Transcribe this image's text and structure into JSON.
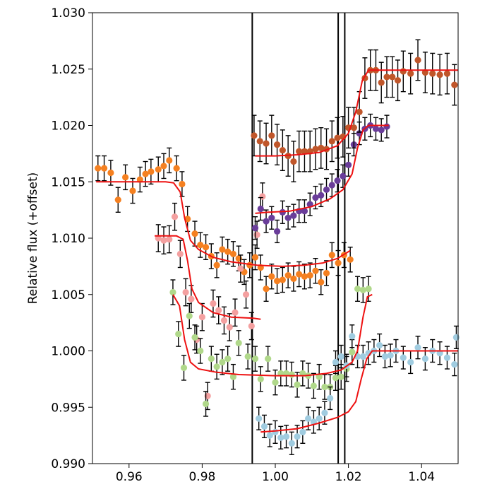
{
  "chart_data": {
    "type": "scatter",
    "title": "",
    "xlabel": "",
    "ylabel": "Relative flux (+offset)",
    "xlim": [
      0.95,
      1.05
    ],
    "ylim": [
      0.99,
      1.03
    ],
    "xticks": [
      0.96,
      0.98,
      1.0,
      1.02,
      1.04
    ],
    "xtick_labels": [
      "0.96",
      "0.98",
      "1.00",
      "1.02",
      "1.04"
    ],
    "yticks": [
      0.99,
      0.995,
      1.0,
      1.005,
      1.01,
      1.015,
      1.02,
      1.025,
      1.03
    ],
    "ytick_labels": [
      "0.990",
      "0.995",
      "1.000",
      "1.005",
      "1.010",
      "1.015",
      "1.020",
      "1.025",
      "1.030"
    ],
    "grid": false,
    "vertical_lines": [
      0.9937,
      1.0172,
      1.019
    ],
    "model_color": "#ee1111",
    "series": [
      {
        "color": "#f58020",
        "err": 0.0011,
        "points": [
          [
            0.9515,
            1.0162
          ],
          [
            0.9532,
            1.0162
          ],
          [
            0.955,
            1.0158
          ],
          [
            0.957,
            1.0134
          ],
          [
            0.959,
            1.0154
          ],
          [
            0.961,
            1.0142
          ],
          [
            0.963,
            1.0152
          ],
          [
            0.9645,
            1.0157
          ],
          [
            0.966,
            1.0159
          ],
          [
            0.968,
            1.0161
          ],
          [
            0.9695,
            1.0164
          ],
          [
            0.971,
            1.0169
          ],
          [
            0.973,
            1.0162
          ],
          [
            0.9745,
            1.0148
          ],
          [
            0.976,
            1.0117
          ],
          [
            0.978,
            1.0104
          ],
          [
            0.9795,
            1.0094
          ],
          [
            0.981,
            1.0092
          ],
          [
            0.9825,
            1.0084
          ],
          [
            0.984,
            1.0076
          ],
          [
            0.9855,
            1.009
          ],
          [
            0.987,
            1.0088
          ],
          [
            0.9885,
            1.0086
          ],
          [
            0.99,
            1.0082
          ],
          [
            0.9915,
            1.007
          ],
          [
            0.993,
            1.0076
          ],
          [
            0.9945,
            1.0083
          ],
          [
            0.996,
            1.0074
          ],
          [
            0.9975,
            1.0055
          ],
          [
            0.999,
            1.0066
          ],
          [
            1.0005,
            1.0062
          ],
          [
            1.002,
            1.0063
          ],
          [
            1.0035,
            1.0067
          ],
          [
            1.005,
            1.0064
          ],
          [
            1.0065,
            1.0068
          ],
          [
            1.008,
            1.0066
          ],
          [
            1.0095,
            1.0067
          ],
          [
            1.011,
            1.0071
          ],
          [
            1.0125,
            1.0061
          ],
          [
            1.014,
            1.0069
          ],
          [
            1.0155,
            1.0085
          ],
          [
            1.0172,
            1.0078
          ],
          [
            1.0188,
            1.0085
          ],
          [
            1.0205,
            1.0081
          ]
        ]
      },
      {
        "color": "#f4a0a0",
        "err": 0.0012,
        "points": [
          [
            0.968,
            1.01
          ],
          [
            0.9695,
            1.0098
          ],
          [
            0.971,
            1.0099
          ],
          [
            0.9725,
            1.0119
          ],
          [
            0.974,
            1.0086
          ],
          [
            0.9755,
            1.0052
          ],
          [
            0.977,
            1.0046
          ],
          [
            0.9785,
            1.001
          ],
          [
            0.98,
            1.003
          ],
          [
            0.9815,
            0.996
          ],
          [
            0.983,
            1.0042
          ],
          [
            0.9845,
            1.0036
          ],
          [
            0.986,
            1.0027
          ],
          [
            0.9875,
            1.0021
          ],
          [
            0.989,
            1.0034
          ],
          [
            0.9905,
            1.0073
          ],
          [
            0.992,
            1.005
          ],
          [
            0.9935,
            1.0022
          ],
          [
            0.995,
            1.0103
          ],
          [
            0.9965,
            1.0137
          ]
        ]
      },
      {
        "color": "#b0d88a",
        "err": 0.0011,
        "points": [
          [
            0.972,
            1.0052
          ],
          [
            0.9735,
            1.0015
          ],
          [
            0.975,
            0.9985
          ],
          [
            0.9765,
            1.0031
          ],
          [
            0.978,
            1.0012
          ],
          [
            0.9795,
            1.0
          ],
          [
            0.981,
            0.9953
          ],
          [
            0.9825,
            0.9993
          ],
          [
            0.984,
            0.9986
          ],
          [
            0.9855,
            0.999
          ],
          [
            0.987,
            0.9993
          ],
          [
            0.9885,
            0.9977
          ],
          [
            0.99,
            1.0007
          ],
          [
            0.9925,
            0.9995
          ],
          [
            0.9945,
            0.9993
          ],
          [
            0.996,
            0.9975
          ],
          [
            0.998,
            0.9993
          ],
          [
            1.0,
            0.9972
          ],
          [
            1.0015,
            0.998
          ],
          [
            1.003,
            0.998
          ],
          [
            1.0045,
            0.9979
          ],
          [
            1.006,
            0.997
          ],
          [
            1.0075,
            0.998
          ],
          [
            1.009,
            0.9978
          ],
          [
            1.0105,
            0.9969
          ],
          [
            1.012,
            0.9977
          ],
          [
            1.0135,
            0.9968
          ],
          [
            1.015,
            0.9968
          ],
          [
            1.0165,
            0.9976
          ],
          [
            1.018,
            0.9977
          ],
          [
            1.0195,
            0.9984
          ],
          [
            1.021,
            0.9999
          ],
          [
            1.0225,
            1.0055
          ],
          [
            1.024,
            1.0054
          ],
          [
            1.0255,
            1.0055
          ]
        ]
      },
      {
        "color": "#a0cce0",
        "err": 0.001,
        "points": [
          [
            0.9955,
            0.994
          ],
          [
            0.997,
            0.9933
          ],
          [
            0.9985,
            0.9925
          ],
          [
            1.0,
            0.9928
          ],
          [
            1.0015,
            0.9923
          ],
          [
            1.003,
            0.9924
          ],
          [
            1.0045,
            0.9918
          ],
          [
            1.006,
            0.9924
          ],
          [
            1.0075,
            0.9928
          ],
          [
            1.009,
            0.994
          ],
          [
            1.0105,
            0.9937
          ],
          [
            1.012,
            0.994
          ],
          [
            1.0135,
            0.9945
          ],
          [
            1.015,
            0.9958
          ],
          [
            1.0165,
            0.999
          ],
          [
            1.018,
            0.9995
          ],
          [
            1.0195,
            0.9987
          ],
          [
            1.021,
            1.0013
          ],
          [
            1.0225,
            0.9995
          ],
          [
            1.024,
            0.9995
          ],
          [
            1.0255,
            0.9998
          ],
          [
            1.027,
            1.0
          ],
          [
            1.0285,
            1.0005
          ],
          [
            1.03,
            0.9995
          ],
          [
            1.0315,
            0.9996
          ],
          [
            1.033,
            1.0
          ],
          [
            1.035,
            0.9994
          ],
          [
            1.037,
            0.999
          ],
          [
            1.039,
            1.0003
          ],
          [
            1.041,
            0.9993
          ],
          [
            1.043,
            1.0
          ],
          [
            1.045,
            0.9998
          ],
          [
            1.047,
            0.9994
          ],
          [
            1.049,
            0.9988
          ],
          [
            1.0495,
            1.0012
          ]
        ]
      },
      {
        "color": "#6a3d9a",
        "err": 0.001,
        "points": [
          [
            0.9945,
            1.0109
          ],
          [
            0.996,
            1.0126
          ],
          [
            0.9975,
            1.0115
          ],
          [
            0.999,
            1.0118
          ],
          [
            1.0005,
            1.0106
          ],
          [
            1.002,
            1.0123
          ],
          [
            1.0035,
            1.0118
          ],
          [
            1.005,
            1.012
          ],
          [
            1.0065,
            1.0124
          ],
          [
            1.008,
            1.0124
          ],
          [
            1.0095,
            1.013
          ],
          [
            1.011,
            1.0136
          ],
          [
            1.0125,
            1.0138
          ],
          [
            1.014,
            1.0143
          ],
          [
            1.0155,
            1.0147
          ],
          [
            1.017,
            1.0151
          ],
          [
            1.0185,
            1.0155
          ],
          [
            1.02,
            1.0165
          ],
          [
            1.0215,
            1.0183
          ],
          [
            1.023,
            1.0193
          ],
          [
            1.0245,
            1.0197
          ],
          [
            1.026,
            1.02
          ],
          [
            1.0275,
            1.0197
          ],
          [
            1.029,
            1.0196
          ],
          [
            1.0305,
            1.0199
          ]
        ]
      },
      {
        "color": "#c0562a",
        "err": 0.0018,
        "points": [
          [
            0.9942,
            1.0191
          ],
          [
            0.9958,
            1.0186
          ],
          [
            0.9975,
            1.0184
          ],
          [
            0.999,
            1.0191
          ],
          [
            1.0005,
            1.0183
          ],
          [
            1.002,
            1.0178
          ],
          [
            1.0035,
            1.0173
          ],
          [
            1.005,
            1.0168
          ],
          [
            1.0065,
            1.0177
          ],
          [
            1.008,
            1.0177
          ],
          [
            1.0095,
            1.0177
          ],
          [
            1.011,
            1.0179
          ],
          [
            1.0125,
            1.018
          ],
          [
            1.014,
            1.0179
          ],
          [
            1.0155,
            1.0186
          ],
          [
            1.017,
            1.0189
          ],
          [
            1.0185,
            1.019
          ],
          [
            1.02,
            1.0198
          ],
          [
            1.0215,
            1.0198
          ],
          [
            1.023,
            1.0212
          ],
          [
            1.0245,
            1.0242
          ],
          [
            1.026,
            1.0249
          ],
          [
            1.0275,
            1.0249
          ],
          [
            1.029,
            1.0238
          ],
          [
            1.0305,
            1.0243
          ],
          [
            1.032,
            1.0243
          ],
          [
            1.0335,
            1.024
          ],
          [
            1.035,
            1.0248
          ],
          [
            1.037,
            1.0246
          ],
          [
            1.039,
            1.0258
          ],
          [
            1.041,
            1.0247
          ],
          [
            1.043,
            1.0246
          ],
          [
            1.045,
            1.0245
          ],
          [
            1.047,
            1.0246
          ],
          [
            1.049,
            1.0236
          ]
        ]
      }
    ],
    "models": [
      [
        [
          0.951,
          1.015
        ],
        [
          0.97,
          1.015
        ],
        [
          0.9722,
          1.0149
        ],
        [
          0.974,
          1.0141
        ],
        [
          0.9752,
          1.0118
        ],
        [
          0.9768,
          1.0098
        ],
        [
          0.979,
          1.009
        ],
        [
          0.983,
          1.0083
        ],
        [
          0.988,
          1.0079
        ],
        [
          0.995,
          1.0076
        ],
        [
          1.002,
          1.0075
        ],
        [
          1.008,
          1.0076
        ],
        [
          1.013,
          1.0078
        ],
        [
          1.017,
          1.0082
        ],
        [
          1.0205,
          1.0089
        ]
      ],
      [
        [
          0.967,
          1.0102
        ],
        [
          0.973,
          1.0102
        ],
        [
          0.9748,
          1.0099
        ],
        [
          0.976,
          1.008
        ],
        [
          0.9772,
          1.0055
        ],
        [
          0.979,
          1.0043
        ],
        [
          0.983,
          1.0034
        ],
        [
          0.988,
          1.003
        ],
        [
          0.994,
          1.0029
        ],
        [
          0.996,
          1.0028
        ]
      ],
      [
        [
          0.972,
          1.005
        ],
        [
          0.9738,
          1.004
        ],
        [
          0.9752,
          1.001
        ],
        [
          0.9768,
          0.999
        ],
        [
          0.979,
          0.9984
        ],
        [
          0.984,
          0.9981
        ],
        [
          0.99,
          0.9979
        ],
        [
          1.0,
          0.9978
        ],
        [
          1.008,
          0.9978
        ],
        [
          1.014,
          0.998
        ],
        [
          1.018,
          0.9983
        ],
        [
          1.021,
          0.999
        ],
        [
          1.0225,
          1.0
        ],
        [
          1.024,
          1.003
        ],
        [
          1.0252,
          1.0048
        ],
        [
          1.0265,
          1.005
        ]
      ],
      [
        [
          0.996,
          0.9928
        ],
        [
          1.0,
          0.9929
        ],
        [
          1.006,
          0.9931
        ],
        [
          1.012,
          0.9936
        ],
        [
          1.017,
          0.9941
        ],
        [
          1.02,
          0.9946
        ],
        [
          1.022,
          0.9955
        ],
        [
          1.0235,
          0.9975
        ],
        [
          1.025,
          0.9993
        ],
        [
          1.0265,
          1.0
        ],
        [
          1.05,
          1.0
        ]
      ],
      [
        [
          0.9945,
          1.0122
        ],
        [
          0.998,
          1.0123
        ],
        [
          1.004,
          1.0124
        ],
        [
          1.01,
          1.0128
        ],
        [
          1.015,
          1.0135
        ],
        [
          1.0185,
          1.0143
        ],
        [
          1.021,
          1.0157
        ],
        [
          1.0225,
          1.018
        ],
        [
          1.024,
          1.0196
        ],
        [
          1.0255,
          1.02
        ],
        [
          1.031,
          1.02
        ]
      ],
      [
        [
          0.9945,
          1.0173
        ],
        [
          1.0,
          1.0173
        ],
        [
          1.006,
          1.0174
        ],
        [
          1.012,
          1.0176
        ],
        [
          1.017,
          1.0182
        ],
        [
          1.02,
          1.0193
        ],
        [
          1.022,
          1.0212
        ],
        [
          1.0238,
          1.024
        ],
        [
          1.0255,
          1.0249
        ],
        [
          1.05,
          1.0249
        ]
      ]
    ]
  }
}
